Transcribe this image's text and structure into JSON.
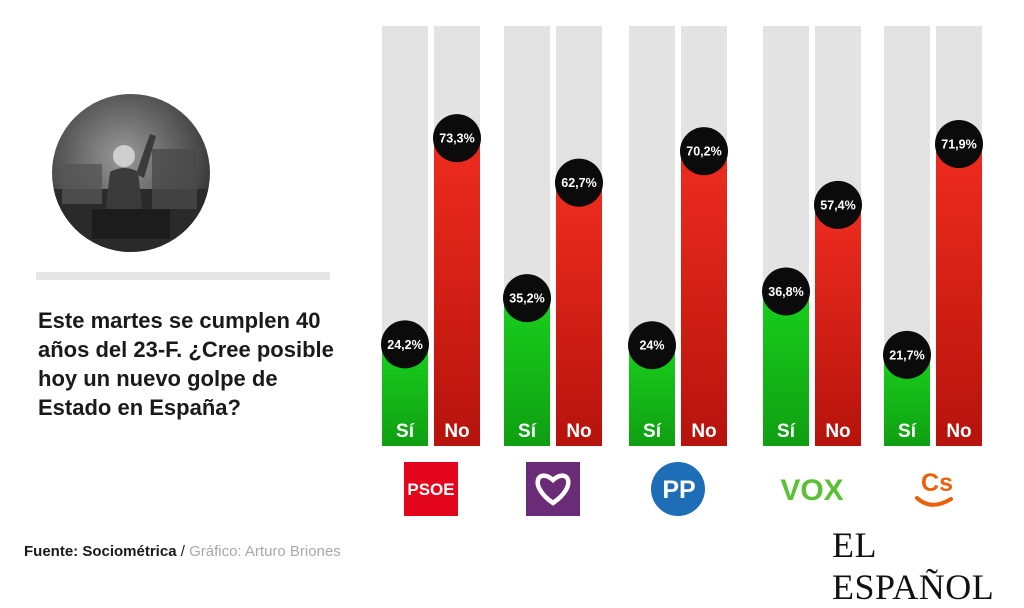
{
  "question": "Este martes se cumplen 40 años del 23-F. ¿Cree posible hoy un nuevo golpe de Estado en España?",
  "footer": {
    "source_label": "Fuente: Sociométrica",
    "separator": " / ",
    "credit": "Gráfico: Arturo Briones"
  },
  "brand": "EL ESPAÑOL",
  "colors": {
    "yes": "#16c41a",
    "no": "#e02a1e",
    "track": "#e3e3e3",
    "bubble": "#0b0b0b"
  },
  "chart_data": {
    "type": "bar",
    "categories": [
      "PSOE",
      "Podemos",
      "PP",
      "VOX",
      "Cs"
    ],
    "series": [
      {
        "name": "Sí",
        "values": [
          24.2,
          35.2,
          24,
          36.8,
          21.7
        ]
      },
      {
        "name": "No",
        "values": [
          73.3,
          62.7,
          70.2,
          57.4,
          71.9
        ]
      }
    ],
    "data_labels": {
      "Sí": [
        "24,2%",
        "35,2%",
        "24%",
        "36,8%",
        "21,7%"
      ],
      "No": [
        "73,3%",
        "62,7%",
        "70,2%",
        "57,4%",
        "71,9%"
      ]
    },
    "ylim": [
      0,
      100
    ],
    "logos": [
      {
        "party": "PSOE",
        "icon": "psoe-logo",
        "text": "PSOE",
        "color": "#e3051b"
      },
      {
        "party": "Podemos",
        "icon": "podemos-heart-logo",
        "color": "#6b2c77"
      },
      {
        "party": "PP",
        "icon": "pp-logo",
        "text": "PP",
        "color": "#1d6eb6"
      },
      {
        "party": "VOX",
        "icon": "vox-logo",
        "text": "VOX",
        "color": "#5bc035"
      },
      {
        "party": "Cs",
        "icon": "cs-logo",
        "text": "Cs",
        "color": "#eb6109"
      }
    ]
  }
}
